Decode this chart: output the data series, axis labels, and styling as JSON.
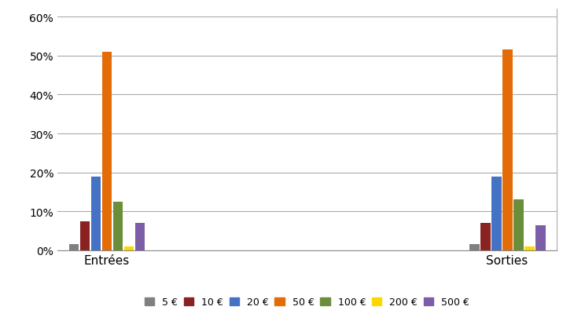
{
  "categories": [
    "Entrées",
    "Sorties"
  ],
  "series": [
    {
      "label": "5 €",
      "color": "#808080",
      "values": [
        1.5,
        1.5
      ]
    },
    {
      "label": "10 €",
      "color": "#8B2222",
      "values": [
        7.5,
        7.0
      ]
    },
    {
      "label": "20 €",
      "color": "#4472C4",
      "values": [
        19.0,
        19.0
      ]
    },
    {
      "label": "50 €",
      "color": "#E36C09",
      "values": [
        51.0,
        51.5
      ]
    },
    {
      "label": "100 €",
      "color": "#6B8E3A",
      "values": [
        12.5,
        13.0
      ]
    },
    {
      "label": "200 €",
      "color": "#FFD700",
      "values": [
        1.0,
        1.0
      ]
    },
    {
      "label": "500 €",
      "color": "#7B5EA7",
      "values": [
        7.0,
        6.5
      ]
    }
  ],
  "ylim": [
    0,
    0.62
  ],
  "yticks": [
    0.0,
    0.1,
    0.2,
    0.3,
    0.4,
    0.5,
    0.6
  ],
  "ytick_labels": [
    "0%",
    "10%",
    "20%",
    "30%",
    "40%",
    "50%",
    "60%"
  ],
  "background_color": "#FFFFFF",
  "grid_color": "#AAAAAA",
  "bar_width": 0.055,
  "legend_fontsize": 9,
  "tick_fontsize": 10,
  "category_fontsize": 11
}
